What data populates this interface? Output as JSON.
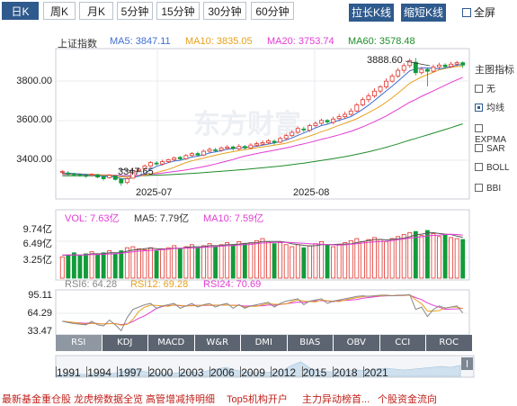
{
  "tabs": [
    {
      "label": "日K",
      "active": true
    },
    {
      "label": "周K",
      "active": false
    },
    {
      "label": "月K",
      "active": false
    },
    {
      "label": "5分钟",
      "active": false
    },
    {
      "label": "15分钟",
      "active": false
    },
    {
      "label": "30分钟",
      "active": false
    },
    {
      "label": "60分钟",
      "active": false
    }
  ],
  "toolbar": {
    "stretch": "拉长K线",
    "shrink": "缩短K线",
    "fullscreen": "全屏"
  },
  "main_legend": {
    "name": "上证指数",
    "ma5": "MA5: 3847.11",
    "ma10": "MA10: 3835.05",
    "ma20": "MA20: 3753.74",
    "ma60": "MA60: 3578.48"
  },
  "price_axis": [
    "3800.00",
    "3600.00",
    "3400.00"
  ],
  "annotations": {
    "high": "3888.60",
    "low": "3347.65"
  },
  "date_axis": [
    "2025-07",
    "2025-08"
  ],
  "side_panel": {
    "title": "主图指标",
    "items": [
      {
        "label": "无",
        "checked": false
      },
      {
        "label": "均线",
        "checked": true
      },
      {
        "label": "EXPMA",
        "checked": false
      },
      {
        "label": "SAR",
        "checked": false
      },
      {
        "label": "BOLL",
        "checked": false
      },
      {
        "label": "BBI",
        "checked": false
      }
    ]
  },
  "volume_legend": {
    "vol": "VOL: 7.63亿",
    "ma5": "MA5: 7.79亿",
    "ma10": "MA10: 7.59亿"
  },
  "volume_axis": [
    "9.74亿",
    "6.49亿",
    "3.25亿"
  ],
  "rsi_legend": {
    "rsi6": "RSI6: 64.28",
    "rsi12": "RSI12: 69.28",
    "rsi24": "RSI24: 70.69"
  },
  "rsi_axis": [
    "95.11",
    "64.29",
    "33.47"
  ],
  "indicator_tabs": [
    "RSI",
    "KDJ",
    "MACD",
    "W&R",
    "DMI",
    "BIAS",
    "OBV",
    "CCI",
    "ROC"
  ],
  "years": [
    "1991",
    "1994",
    "1997",
    "2000",
    "2003",
    "2006",
    "2009",
    "2012",
    "2015",
    "2018",
    "2021"
  ],
  "news": [
    "最新基金重仓股",
    "龙虎榜数据全览",
    "高管增减持明细",
    "Top5机构开户",
    "主力异动榜首...",
    "个股资金流向"
  ],
  "colors": {
    "up": "#e0332c",
    "down": "#139b3a",
    "ma5": "#3f6fd1",
    "ma10": "#e6a11e",
    "ma20": "#e33cd3",
    "ma60": "#1f8c2a",
    "accent": "#2f5a8d"
  },
  "chart_data": {
    "type": "candlestick",
    "ylim": [
      3300,
      3920
    ],
    "candles": [
      [
        3406,
        3409,
        3399,
        3414
      ],
      [
        3402,
        3397,
        3390,
        3410
      ],
      [
        3398,
        3394,
        3388,
        3403
      ],
      [
        3395,
        3391,
        3385,
        3400
      ],
      [
        3392,
        3389,
        3382,
        3398
      ],
      [
        3392,
        3396,
        3388,
        3401
      ],
      [
        3395,
        3385,
        3380,
        3398
      ],
      [
        3385,
        3378,
        3370,
        3390
      ],
      [
        3382,
        3392,
        3378,
        3396
      ],
      [
        3390,
        3375,
        3370,
        3394
      ],
      [
        3376,
        3360,
        3348,
        3380
      ],
      [
        3362,
        3378,
        3355,
        3383
      ],
      [
        3380,
        3412,
        3378,
        3416
      ],
      [
        3412,
        3418,
        3405,
        3424
      ],
      [
        3420,
        3432,
        3414,
        3438
      ],
      [
        3432,
        3446,
        3428,
        3452
      ],
      [
        3444,
        3442,
        3434,
        3452
      ],
      [
        3440,
        3450,
        3434,
        3458
      ],
      [
        3450,
        3458,
        3444,
        3462
      ],
      [
        3458,
        3466,
        3452,
        3472
      ],
      [
        3468,
        3462,
        3455,
        3474
      ],
      [
        3462,
        3476,
        3458,
        3482
      ],
      [
        3476,
        3484,
        3470,
        3490
      ],
      [
        3484,
        3478,
        3472,
        3492
      ],
      [
        3478,
        3494,
        3474,
        3500
      ],
      [
        3494,
        3502,
        3488,
        3510
      ],
      [
        3500,
        3498,
        3490,
        3508
      ],
      [
        3498,
        3508,
        3492,
        3514
      ],
      [
        3506,
        3512,
        3500,
        3520
      ],
      [
        3512,
        3506,
        3496,
        3518
      ],
      [
        3504,
        3514,
        3498,
        3524
      ],
      [
        3514,
        3508,
        3500,
        3520
      ],
      [
        3508,
        3520,
        3504,
        3528
      ],
      [
        3520,
        3526,
        3514,
        3534
      ],
      [
        3524,
        3530,
        3518,
        3540
      ],
      [
        3530,
        3538,
        3524,
        3546
      ],
      [
        3536,
        3532,
        3522,
        3544
      ],
      [
        3532,
        3548,
        3528,
        3556
      ],
      [
        3548,
        3560,
        3542,
        3568
      ],
      [
        3560,
        3574,
        3554,
        3582
      ],
      [
        3574,
        3590,
        3568,
        3598
      ],
      [
        3588,
        3584,
        3574,
        3598
      ],
      [
        3582,
        3602,
        3576,
        3610
      ],
      [
        3602,
        3612,
        3594,
        3620
      ],
      [
        3612,
        3624,
        3604,
        3632
      ],
      [
        3624,
        3618,
        3606,
        3630
      ],
      [
        3616,
        3630,
        3608,
        3640
      ],
      [
        3632,
        3640,
        3620,
        3652
      ],
      [
        3640,
        3650,
        3630,
        3662
      ],
      [
        3650,
        3664,
        3644,
        3676
      ],
      [
        3664,
        3690,
        3660,
        3698
      ],
      [
        3690,
        3712,
        3684,
        3722
      ],
      [
        3712,
        3728,
        3700,
        3740
      ],
      [
        3728,
        3748,
        3720,
        3760
      ],
      [
        3748,
        3766,
        3738,
        3774
      ],
      [
        3766,
        3790,
        3758,
        3802
      ],
      [
        3790,
        3812,
        3784,
        3822
      ],
      [
        3812,
        3836,
        3804,
        3846
      ],
      [
        3836,
        3856,
        3824,
        3866
      ],
      [
        3856,
        3876,
        3846,
        3886
      ],
      [
        3870,
        3826,
        3814,
        3888.6
      ],
      [
        3826,
        3840,
        3818,
        3850
      ],
      [
        3840,
        3832,
        3768,
        3848
      ],
      [
        3832,
        3850,
        3826,
        3860
      ],
      [
        3850,
        3858,
        3840,
        3868
      ],
      [
        3858,
        3852,
        3842,
        3866
      ],
      [
        3852,
        3862,
        3846,
        3872
      ],
      [
        3862,
        3868,
        3852,
        3876
      ],
      [
        3868,
        3858,
        3846,
        3874
      ]
    ],
    "volumes": [
      4.2,
      4.6,
      5.0,
      4.4,
      4.8,
      5.2,
      4.6,
      5.0,
      5.4,
      4.8,
      5.4,
      6.0,
      6.2,
      5.8,
      5.6,
      6.0,
      5.4,
      5.8,
      6.0,
      6.4,
      5.8,
      6.2,
      6.6,
      6.0,
      6.4,
      6.8,
      6.2,
      6.6,
      7.0,
      6.6,
      7.2,
      6.8,
      7.0,
      7.4,
      7.8,
      7.2,
      6.8,
      7.0,
      6.6,
      6.2,
      6.6,
      6.0,
      6.4,
      6.8,
      7.2,
      6.6,
      6.2,
      6.6,
      7.0,
      7.4,
      7.8,
      7.2,
      7.6,
      8.0,
      7.6,
      7.2,
      7.8,
      8.2,
      8.6,
      9.0,
      9.2,
      8.4,
      9.4,
      8.8,
      8.2,
      8.6,
      8.0,
      7.8,
      7.63
    ],
    "vol_ylim": [
      0,
      11
    ],
    "rsi": {
      "ylim": [
        30,
        100
      ],
      "rsi6": [
        50,
        48,
        46,
        45,
        44,
        50,
        44,
        42,
        52,
        44,
        34,
        56,
        70,
        74,
        78,
        80,
        72,
        76,
        78,
        80,
        72,
        76,
        80,
        74,
        78,
        80,
        74,
        78,
        80,
        72,
        78,
        72,
        76,
        78,
        80,
        82,
        74,
        80,
        84,
        86,
        88,
        78,
        84,
        86,
        88,
        80,
        84,
        86,
        88,
        90,
        92,
        93,
        92,
        93,
        94,
        94,
        93,
        94,
        94,
        95,
        70,
        74,
        58,
        70,
        76,
        72,
        74,
        76,
        64
      ]
    }
  }
}
